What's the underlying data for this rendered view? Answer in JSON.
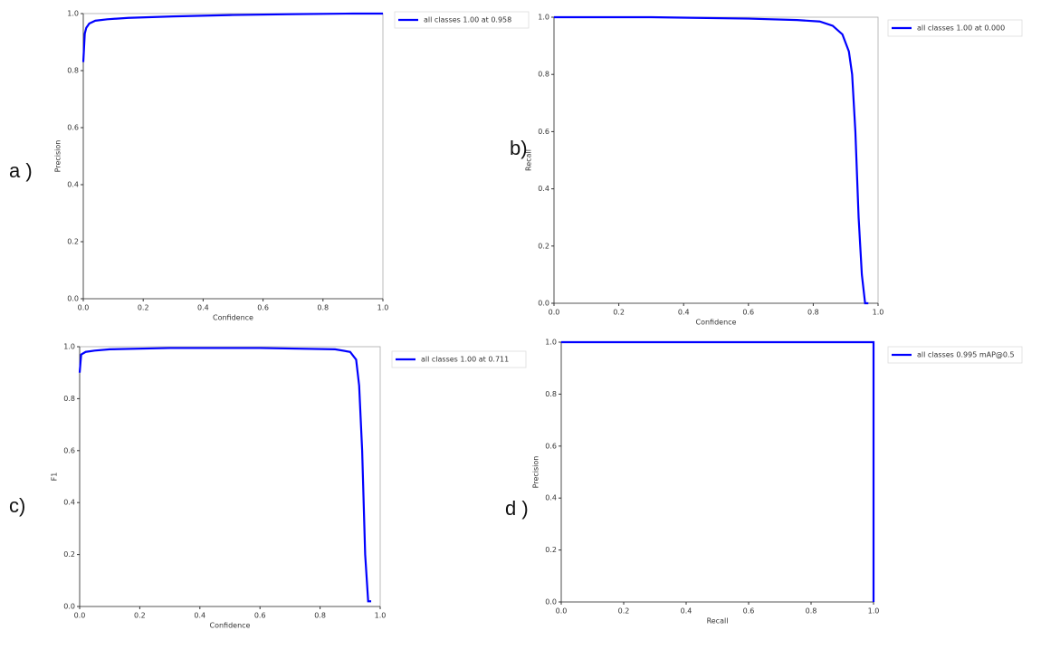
{
  "chart_data": [
    {
      "type": "line",
      "panel_label": "a )",
      "x_label": "Confidence",
      "y_label": "Precision",
      "x": [
        0,
        0.005,
        0.01,
        0.02,
        0.04,
        0.08,
        0.15,
        0.3,
        0.5,
        0.7,
        0.9,
        1.0
      ],
      "series": [
        {
          "name": "all classes 1.00 at 0.958",
          "color": "#0000ff",
          "values": [
            0.83,
            0.93,
            0.95,
            0.965,
            0.975,
            0.98,
            0.985,
            0.99,
            0.995,
            0.998,
            1,
            1
          ]
        }
      ],
      "xlim": [
        0,
        1
      ],
      "ylim": [
        0,
        1
      ],
      "xticks": [
        {
          "value": 0,
          "label": "0.0"
        },
        0.2,
        0.4,
        0.6,
        0.8,
        {
          "value": 1,
          "label": "1.0"
        }
      ],
      "yticks": [
        {
          "value": 0,
          "label": "0.0"
        },
        0.2,
        0.4,
        0.6,
        0.8,
        {
          "value": 1,
          "label": "1.0"
        }
      ],
      "grid": false,
      "legend": "outside-right"
    },
    {
      "type": "line",
      "panel_label": "b)",
      "x_label": "Confidence",
      "y_label": "Recall",
      "x": [
        0,
        0.3,
        0.6,
        0.75,
        0.82,
        0.86,
        0.89,
        0.91,
        0.92,
        0.93,
        0.94,
        0.95,
        0.96,
        0.97
      ],
      "series": [
        {
          "name": "all classes 1.00 at 0.000",
          "color": "#0000ff",
          "values": [
            1,
            1,
            0.995,
            0.99,
            0.985,
            0.97,
            0.94,
            0.88,
            0.8,
            0.6,
            0.3,
            0.1,
            0,
            0
          ]
        }
      ],
      "xlim": [
        0,
        1
      ],
      "ylim": [
        0,
        1
      ],
      "xticks": [
        {
          "value": 0,
          "label": "0.0"
        },
        0.2,
        0.4,
        0.6,
        0.8,
        {
          "value": 1,
          "label": "1.0"
        }
      ],
      "yticks": [
        {
          "value": 0,
          "label": "0.0"
        },
        0.2,
        0.4,
        0.6,
        0.8,
        {
          "value": 1,
          "label": "1.0"
        }
      ],
      "grid": false,
      "legend": "outside-right"
    },
    {
      "type": "line",
      "panel_label": "c)",
      "x_label": "Confidence",
      "y_label": "F1",
      "x": [
        0,
        0.005,
        0.02,
        0.05,
        0.1,
        0.3,
        0.6,
        0.85,
        0.9,
        0.92,
        0.93,
        0.94,
        0.95,
        0.96,
        0.97
      ],
      "series": [
        {
          "name": "all classes 1.00 at 0.711",
          "color": "#0000ff",
          "values": [
            0.9,
            0.97,
            0.98,
            0.985,
            0.99,
            0.995,
            0.995,
            0.99,
            0.98,
            0.95,
            0.85,
            0.6,
            0.2,
            0.02,
            0.02
          ]
        }
      ],
      "xlim": [
        0,
        1
      ],
      "ylim": [
        0,
        1
      ],
      "xticks": [
        {
          "value": 0,
          "label": "0.0"
        },
        0.2,
        0.4,
        0.6,
        0.8,
        {
          "value": 1,
          "label": "1.0"
        }
      ],
      "yticks": [
        {
          "value": 0,
          "label": "0.0"
        },
        0.2,
        0.4,
        0.6,
        0.8,
        {
          "value": 1,
          "label": "1.0"
        }
      ],
      "grid": false,
      "legend": "outside-right"
    },
    {
      "type": "line",
      "panel_label": "d )",
      "x_label": "Recall",
      "y_label": "Precision",
      "x": [
        0,
        1,
        1
      ],
      "series": [
        {
          "name": "all classes 0.995 mAP@0.5",
          "color": "#0000ff",
          "values": [
            1,
            1,
            0
          ]
        }
      ],
      "xlim": [
        0,
        1
      ],
      "ylim": [
        0,
        1
      ],
      "xticks": [
        {
          "value": 0,
          "label": "0.0"
        },
        0.2,
        0.4,
        0.6,
        0.8,
        {
          "value": 1,
          "label": "1.0"
        }
      ],
      "yticks": [
        {
          "value": 0,
          "label": "0.0"
        },
        0.2,
        0.4,
        0.6,
        0.8,
        {
          "value": 1,
          "label": "1.0"
        }
      ],
      "grid": false,
      "legend": "outside-right"
    }
  ]
}
